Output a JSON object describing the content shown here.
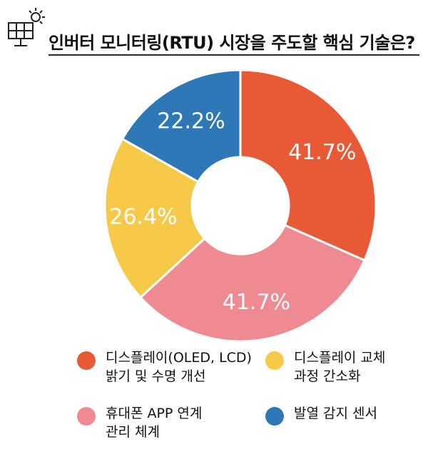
{
  "header": {
    "title": "인버터 모니터링(RTU) 시장을 주도할 핵심 기술은?",
    "logo_icon": "solar-panel-icon"
  },
  "colors": {
    "display_brightness": "#e85a36",
    "display_replacement": "#f7c948",
    "app_management": "#ef8a92",
    "heat_sensor": "#2e78b7"
  },
  "chart_data": {
    "type": "pie",
    "donut": true,
    "title": "인버터 모니터링(RTU) 시장을 주도할 핵심 기술은?",
    "slices": [
      {
        "label": "디스플레이(OLED, LCD)\n밝기 및 수명 개선",
        "value": 41.7,
        "display": "41.7%",
        "color": "#e85a36"
      },
      {
        "label": "휴대폰 APP 연계\n관리 체계",
        "value": 41.7,
        "display": "41.7%",
        "color": "#ef8a92"
      },
      {
        "label": "디스플레이 교체\n과정 간소화",
        "value": 26.4,
        "display": "26.4%",
        "color": "#f7c948"
      },
      {
        "label": "발열 감지 센서",
        "value": 22.2,
        "display": "22.2%",
        "color": "#2e78b7"
      }
    ]
  },
  "legend": {
    "items": [
      {
        "label": "디스플레이(OLED, LCD)\n밝기 및 수명 개선",
        "color": "#e85a36"
      },
      {
        "label": "디스플레이 교체\n과정 간소화",
        "color": "#f7c948"
      },
      {
        "label": "휴대폰 APP 연계\n관리 체계",
        "color": "#ef8a92"
      },
      {
        "label": "발열 감지 센서",
        "color": "#2e78b7"
      }
    ]
  }
}
